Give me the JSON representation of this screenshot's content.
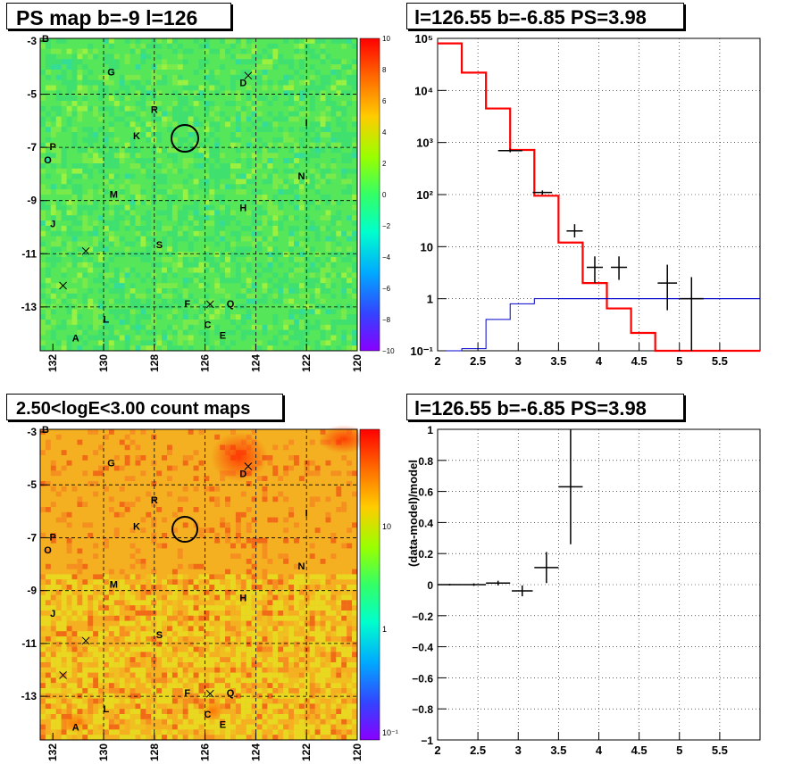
{
  "panels": {
    "tl": {
      "title": "PS map b=-9 l=126"
    },
    "tr": {
      "title": "l=126.55 b=-6.85 PS=3.98"
    },
    "bl": {
      "title": "2.50<logE<3.00 count maps"
    },
    "br": {
      "title": "l=126.55 b=-6.85 PS=3.98"
    }
  },
  "map_axes": {
    "x_ticks": [
      "132",
      "130",
      "128",
      "126",
      "124",
      "122",
      "120"
    ],
    "y_ticks": [
      "-3",
      "-5",
      "-7",
      "-9",
      "-11",
      "-13"
    ],
    "y_top_extra": "B"
  },
  "ps_colorbar": {
    "labels": [
      "10",
      "8",
      "6",
      "4",
      "2",
      "0",
      "−2",
      "−4",
      "−6",
      "−8",
      "−10"
    ]
  },
  "count_colorbar": {
    "labels": [
      "10",
      "1",
      "10⁻¹"
    ]
  },
  "sources": [
    {
      "label": "G",
      "l": 129.7,
      "b": -4.2
    },
    {
      "label": "D",
      "l": 124.5,
      "b": -4.6
    },
    {
      "label": "R",
      "l": 128.0,
      "b": -5.6
    },
    {
      "label": "I",
      "l": 122.0,
      "b": -6.1
    },
    {
      "label": "K",
      "l": 128.7,
      "b": -6.6
    },
    {
      "label": "P",
      "l": 132.0,
      "b": -7.0
    },
    {
      "label": "O",
      "l": 132.2,
      "b": -7.5
    },
    {
      "label": "N",
      "l": 122.2,
      "b": -8.1
    },
    {
      "label": "M",
      "l": 129.6,
      "b": -8.8
    },
    {
      "label": "H",
      "l": 124.5,
      "b": -9.3
    },
    {
      "label": "J",
      "l": 132.0,
      "b": -9.9
    },
    {
      "label": "S",
      "l": 127.8,
      "b": -10.7
    },
    {
      "label": "F",
      "l": 126.7,
      "b": -12.9
    },
    {
      "label": "Q",
      "l": 125.0,
      "b": -12.9
    },
    {
      "label": "L",
      "l": 129.9,
      "b": -13.5
    },
    {
      "label": "C",
      "l": 125.9,
      "b": -13.7
    },
    {
      "label": "E",
      "l": 125.3,
      "b": -14.1
    },
    {
      "label": "A",
      "l": 131.1,
      "b": -14.2
    }
  ],
  "chart_data": [
    {
      "type": "line",
      "name": "spectrum",
      "title": "l=126.55 b=-6.85 PS=3.98",
      "xlim": [
        2,
        6
      ],
      "ylim": [
        0.1,
        100000
      ],
      "ylog": true,
      "x_ticks": [
        "2",
        "2.5",
        "3",
        "3.5",
        "4",
        "4.5",
        "5",
        "5.5"
      ],
      "y_ticks": [
        "10⁻¹",
        "1",
        "10",
        "10²",
        "10³",
        "10⁴",
        "10⁵"
      ],
      "grid": true,
      "series": [
        {
          "style": "model_total",
          "color": "#ff0000",
          "edges": [
            2.0,
            2.3,
            2.6,
            2.9,
            3.2,
            3.5,
            3.8,
            4.1,
            4.4,
            4.7,
            5.0,
            5.3,
            6.0
          ],
          "values": [
            80000,
            22000,
            4500,
            720,
            95,
            12,
            2,
            0.65,
            0.22,
            0.1,
            0.1,
            0.1
          ]
        },
        {
          "style": "model_source",
          "color": "#0000cc",
          "edges": [
            2.0,
            2.3,
            2.6,
            2.9,
            3.2,
            3.5,
            6.0
          ],
          "values": [
            0.1,
            0.11,
            0.4,
            0.8,
            1.0,
            1.0
          ]
        },
        {
          "style": "data_points",
          "color": "#000000",
          "points": [
            {
              "x": 2.9,
              "y": 700,
              "xerr": 0.15,
              "ylo": 650,
              "yhi": 760
            },
            {
              "x": 3.3,
              "y": 110,
              "xerr": 0.12,
              "ylo": 100,
              "yhi": 120
            },
            {
              "x": 3.7,
              "y": 20,
              "xerr": 0.1,
              "ylo": 15,
              "yhi": 27
            },
            {
              "x": 3.95,
              "y": 4,
              "xerr": 0.1,
              "ylo": 2,
              "yhi": 6.5
            },
            {
              "x": 4.25,
              "y": 4,
              "xerr": 0.1,
              "ylo": 2.3,
              "yhi": 6.5
            },
            {
              "x": 4.85,
              "y": 2,
              "xerr": 0.12,
              "ylo": 0.6,
              "yhi": 4.5
            },
            {
              "x": 5.15,
              "y": 1,
              "xerr": 0.15,
              "ylo": 0.1,
              "yhi": 2.6
            }
          ]
        }
      ]
    },
    {
      "type": "scatter",
      "name": "residuals",
      "title": "l=126.55 b=-6.85 PS=3.98",
      "ylabel": "(data-model)/model",
      "xlim": [
        2,
        6
      ],
      "ylim": [
        -1,
        1
      ],
      "x_ticks": [
        "2",
        "2.5",
        "3",
        "3.5",
        "4",
        "4.5",
        "5",
        "5.5"
      ],
      "y_ticks": [
        "1",
        "0.8",
        "0.6",
        "0.4",
        "0.2",
        "0",
        "−0.2",
        "−0.4",
        "−0.6",
        "−0.8",
        "−1"
      ],
      "grid": true,
      "points": [
        {
          "x": 2.15,
          "y": 0.0,
          "xerr": 0.15,
          "yerr": 0.005
        },
        {
          "x": 2.45,
          "y": 0.0,
          "xerr": 0.15,
          "yerr": 0.008
        },
        {
          "x": 2.75,
          "y": 0.01,
          "xerr": 0.15,
          "yerr": 0.015
        },
        {
          "x": 3.05,
          "y": -0.04,
          "xerr": 0.13,
          "yerr": 0.035
        },
        {
          "x": 3.35,
          "y": 0.11,
          "xerr": 0.15,
          "yerr": 0.1
        },
        {
          "x": 3.65,
          "y": 0.63,
          "xerr": 0.15,
          "yerr": 0.37
        }
      ]
    }
  ]
}
